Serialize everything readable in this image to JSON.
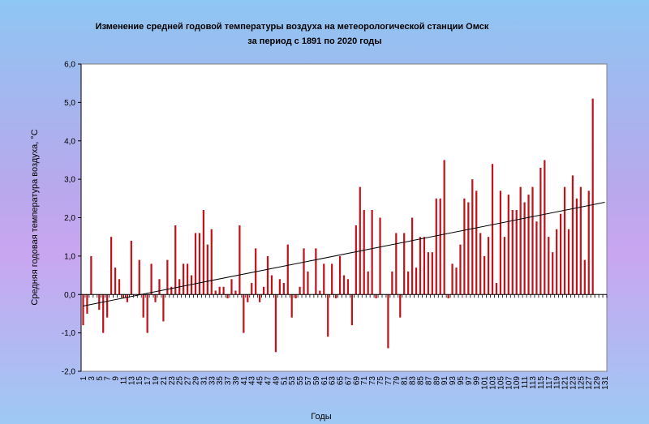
{
  "chart_data": {
    "type": "bar",
    "title_lines": [
      "Изменение средней годовой температуры воздуха на метеорологической станции Омск",
      "за период с 1891  по 2020 годы"
    ],
    "xlabel": "Годы",
    "ylabel": "Средняя годовая температура воздуха, °С",
    "ylim": [
      -2.0,
      6.0
    ],
    "yticks": [
      "-2,0",
      "-1,0",
      "0,0",
      "1,0",
      "2,0",
      "3,0",
      "4,0",
      "5,0",
      "6,0"
    ],
    "xtick_labels": [
      "1",
      "3",
      "5",
      "7",
      "9",
      "11",
      "13",
      "15",
      "17",
      "19",
      "21",
      "23",
      "25",
      "27",
      "29",
      "31",
      "33",
      "35",
      "37",
      "39",
      "41",
      "43",
      "45",
      "47",
      "49",
      "51",
      "53",
      "55",
      "57",
      "59",
      "61",
      "63",
      "65",
      "67",
      "69",
      "71",
      "73",
      "75",
      "77",
      "79",
      "81",
      "83",
      "85",
      "87",
      "89",
      "91",
      "93",
      "95",
      "97",
      "99",
      "101",
      "103",
      "105",
      "107",
      "109",
      "111",
      "113",
      "115",
      "117",
      "119",
      "121",
      "123",
      "125",
      "127",
      "129",
      "131"
    ],
    "x": [
      1,
      2,
      3,
      4,
      5,
      6,
      7,
      8,
      9,
      10,
      11,
      12,
      13,
      14,
      15,
      16,
      17,
      18,
      19,
      20,
      21,
      22,
      23,
      24,
      25,
      26,
      27,
      28,
      29,
      30,
      31,
      32,
      33,
      34,
      35,
      36,
      37,
      38,
      39,
      40,
      41,
      42,
      43,
      44,
      45,
      46,
      47,
      48,
      49,
      50,
      51,
      52,
      53,
      54,
      55,
      56,
      57,
      58,
      59,
      60,
      61,
      62,
      63,
      64,
      65,
      66,
      67,
      68,
      69,
      70,
      71,
      72,
      73,
      74,
      75,
      76,
      77,
      78,
      79,
      80,
      81,
      82,
      83,
      84,
      85,
      86,
      87,
      88,
      89,
      90,
      91,
      92,
      93,
      94,
      95,
      96,
      97,
      98,
      99,
      100,
      101,
      102,
      103,
      104,
      105,
      106,
      107,
      108,
      109,
      110,
      111,
      112,
      113,
      114,
      115,
      116,
      117,
      118,
      119,
      120,
      121,
      122,
      123,
      124,
      125,
      126,
      127,
      128,
      129,
      130
    ],
    "values": [
      -0.8,
      -0.5,
      1.0,
      0.0,
      -0.4,
      -1.0,
      -0.6,
      1.5,
      0.7,
      0.4,
      -0.1,
      -0.2,
      1.4,
      0.0,
      0.9,
      -0.6,
      -1.0,
      0.8,
      -0.2,
      0.4,
      -0.7,
      0.9,
      0.2,
      1.8,
      0.4,
      0.8,
      0.8,
      0.5,
      1.6,
      1.6,
      2.2,
      1.3,
      1.7,
      0.1,
      0.2,
      0.2,
      -0.1,
      0.4,
      0.1,
      1.8,
      -1.0,
      -0.2,
      0.3,
      1.2,
      -0.2,
      0.2,
      1.0,
      0.5,
      -1.5,
      0.4,
      0.3,
      1.3,
      -0.6,
      -0.1,
      0.2,
      1.2,
      0.6,
      0.0,
      1.2,
      0.1,
      0.8,
      -1.1,
      0.8,
      -0.1,
      1.0,
      0.5,
      0.4,
      -0.8,
      1.8,
      2.8,
      2.2,
      0.6,
      2.2,
      -0.1,
      2.0,
      0.0,
      -1.4,
      0.6,
      1.6,
      -0.6,
      1.6,
      0.6,
      2.0,
      0.7,
      1.5,
      1.5,
      1.1,
      1.1,
      2.5,
      2.5,
      3.5,
      -0.1,
      0.8,
      0.7,
      1.3,
      2.5,
      2.4,
      3.0,
      2.7,
      1.6,
      1.0,
      1.5,
      3.4,
      0.3,
      2.7,
      1.5,
      2.6,
      2.2,
      2.2,
      2.8,
      2.4,
      2.6,
      2.8,
      1.9,
      3.3,
      3.5,
      1.5,
      1.1,
      1.7,
      2.1,
      2.8,
      1.7,
      3.1,
      2.5,
      2.8,
      0.9,
      2.7,
      5.1,
      0.0,
      0.0
    ],
    "trend": {
      "x": [
        1,
        131
      ],
      "y": [
        -0.3,
        2.4
      ]
    },
    "colors": {
      "bar": "#c0141c",
      "trend": "#000000",
      "plot_bg": "#ffffff"
    },
    "grid": false,
    "legend": "none"
  }
}
